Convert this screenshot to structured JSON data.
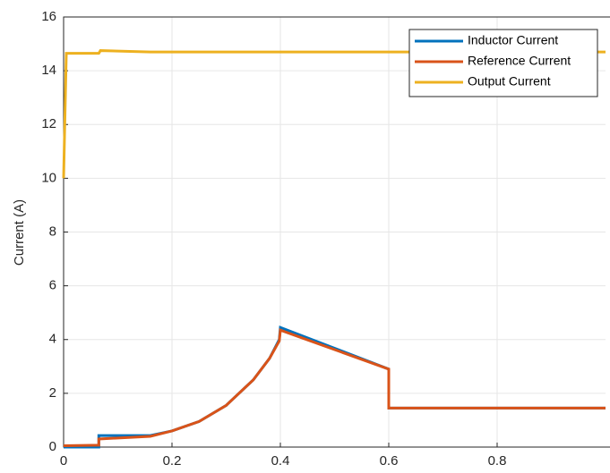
{
  "chart_data": {
    "type": "line",
    "y_label": "Current (A)",
    "xlim": [
      0,
      1
    ],
    "xticks": [
      0,
      0.2,
      0.4,
      0.6,
      0.8
    ],
    "ylim": [
      0,
      16
    ],
    "yticks": [
      0,
      2,
      4,
      6,
      8,
      10,
      12,
      14,
      16
    ],
    "grid": true,
    "legend": "upper right",
    "series": [
      {
        "name": "Inductor Current",
        "color": "#0072bd",
        "x": [
          0,
          0.065,
          0.065,
          0.16,
          0.2,
          0.25,
          0.3,
          0.35,
          0.38,
          0.398,
          0.4,
          0.6,
          0.6,
          1
        ],
        "values": [
          0,
          0,
          0.43,
          0.43,
          0.6,
          0.95,
          1.55,
          2.5,
          3.3,
          4.0,
          4.45,
          2.9,
          1.45,
          1.45
        ]
      },
      {
        "name": "Reference Current",
        "color": "#d95319",
        "x": [
          0,
          0.065,
          0.065,
          0.16,
          0.2,
          0.25,
          0.3,
          0.35,
          0.38,
          0.398,
          0.4,
          0.6,
          0.6,
          1
        ],
        "values": [
          0.05,
          0.07,
          0.3,
          0.4,
          0.6,
          0.95,
          1.55,
          2.5,
          3.3,
          3.95,
          4.35,
          2.9,
          1.45,
          1.45
        ]
      },
      {
        "name": "Output Current",
        "color": "#edb120",
        "x": [
          0,
          0.005,
          0.065,
          0.068,
          0.16,
          1
        ],
        "values": [
          10,
          14.65,
          14.65,
          14.75,
          14.7,
          14.7
        ]
      }
    ]
  }
}
